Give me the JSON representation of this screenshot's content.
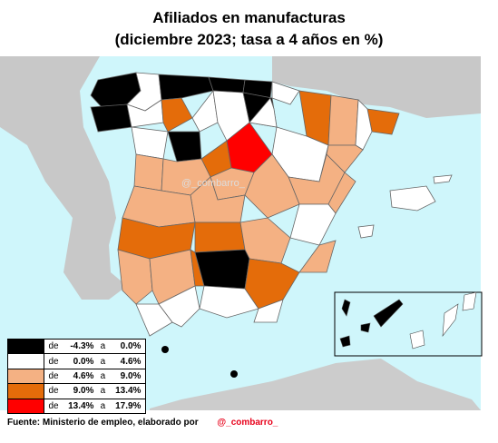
{
  "title": {
    "line1": "Afiliados en manufacturas",
    "line2": "(diciembre 2023; tasa a 4 años en %)"
  },
  "watermark": "@_combarro_",
  "colors": {
    "sea": "#cff6fb",
    "land_neutral": "#b5b5b5",
    "black": "#000000",
    "white": "#ffffff",
    "light_orange": "#f4b183",
    "dark_orange": "#e46c0a",
    "red": "#ff0000"
  },
  "legend": [
    {
      "de": "de",
      "low": "-4.3%",
      "a": "a",
      "high": "0.0%",
      "color": "#000000"
    },
    {
      "de": "de",
      "low": "0.0%",
      "a": "a",
      "high": "4.6%",
      "color": "#ffffff"
    },
    {
      "de": "de",
      "low": "4.6%",
      "a": "a",
      "high": "9.0%",
      "color": "#f4b183"
    },
    {
      "de": "de",
      "low": "9.0%",
      "a": "a",
      "high": "13.4%",
      "color": "#e46c0a"
    },
    {
      "de": "de",
      "low": "13.4%",
      "a": "a",
      "high": "17.9%",
      "color": "#ff0000"
    }
  ],
  "footer": {
    "source": "Fuente: Ministerio de empleo, elaborado por",
    "handle": "@_combarro_"
  }
}
